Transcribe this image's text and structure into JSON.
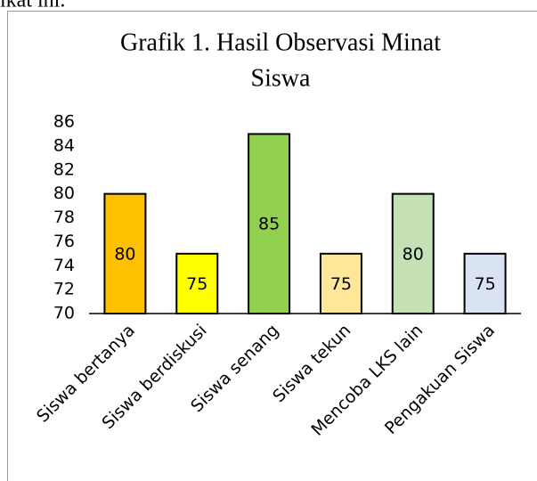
{
  "intro_text": "ikat ini.",
  "chart_data": {
    "type": "bar",
    "title_lines": [
      "Grafik 1. Hasil Observasi Minat",
      "Siswa"
    ],
    "categories": [
      "Siswa bertanya",
      "Siswa berdiskusi",
      "Siswa senang",
      "Siswa tekun",
      "Mencoba LKS lain",
      "Pengakuan Siswa"
    ],
    "values": [
      80,
      75,
      85,
      75,
      80,
      75
    ],
    "colors": [
      "#ffc000",
      "#ffff00",
      "#92d050",
      "#ffe699",
      "#c5e0b4",
      "#dae3f3"
    ],
    "ylim": [
      70,
      86
    ],
    "yticks": [
      70,
      72,
      74,
      76,
      78,
      80,
      82,
      84,
      86
    ],
    "grid": false,
    "data_labels": true
  }
}
